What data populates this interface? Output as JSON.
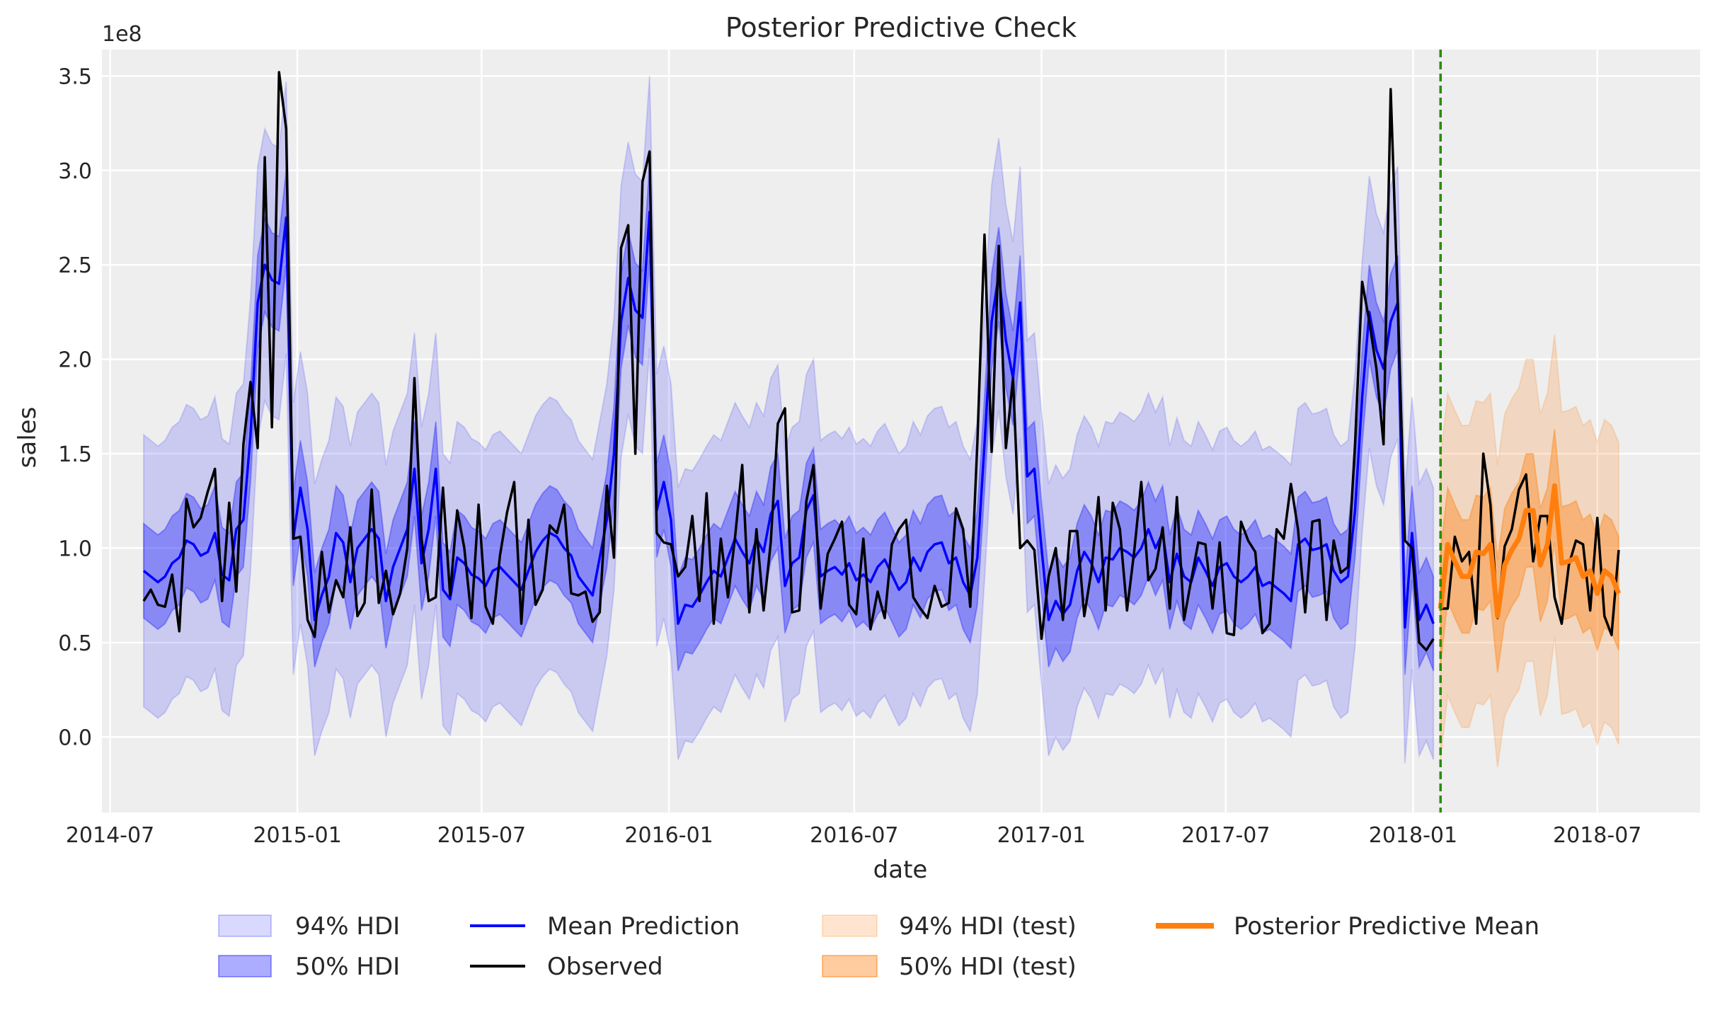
{
  "chart_data": {
    "type": "line",
    "title": "Posterior Predictive Check",
    "xlabel": "date",
    "ylabel": "sales",
    "y_scale_label": "1e8",
    "y_unit_multiplier": 100000000,
    "ylim": [
      -0.4,
      3.64
    ],
    "xlim": [
      "2014-06-23",
      "2018-10-10"
    ],
    "grid": true,
    "y_ticks": [
      0.0,
      0.5,
      1.0,
      1.5,
      2.0,
      2.5,
      3.0,
      3.5
    ],
    "y_tick_labels": [
      "0.0",
      "0.5",
      "1.0",
      "1.5",
      "2.0",
      "2.5",
      "3.0",
      "3.5"
    ],
    "x_ticks": [
      "2014-07-01",
      "2015-01-01",
      "2015-07-01",
      "2016-01-01",
      "2016-07-01",
      "2017-01-01",
      "2017-07-01",
      "2018-01-01",
      "2018-07-01"
    ],
    "x_tick_labels": [
      "2014-07",
      "2015-01",
      "2015-07",
      "2016-01",
      "2016-07",
      "2017-01",
      "2017-07",
      "2018-01",
      "2018-07"
    ],
    "frequency": "weekly",
    "train_start": "2014-08-03",
    "test_start": "2018-01-28",
    "split_line_date": "2018-01-28",
    "legend_placement": "bottom-center",
    "legend": [
      {
        "label": "94% HDI",
        "kind": "patch",
        "color": "#0000ff",
        "alpha": 0.15
      },
      {
        "label": "50% HDI",
        "kind": "patch",
        "color": "#0000ff",
        "alpha": 0.32
      },
      {
        "label": "Mean Prediction",
        "kind": "line",
        "color": "#0000ff"
      },
      {
        "label": "Observed",
        "kind": "line",
        "color": "#000000"
      },
      {
        "label": "94% HDI (test)",
        "kind": "patch",
        "color": "#ff7f0e",
        "alpha": 0.2
      },
      {
        "label": "50% HDI (test)",
        "kind": "patch",
        "color": "#ff7f0e",
        "alpha": 0.4
      },
      {
        "label": "Posterior Predictive Mean",
        "kind": "line",
        "color": "#ff7f0e"
      }
    ],
    "colors": {
      "train": "#0000ff",
      "observed": "#000000",
      "test": "#ff7f0e",
      "split": "#2a8c00",
      "background": "#eeeeee"
    },
    "train": {
      "observed": [
        0.72,
        0.78,
        0.7,
        0.69,
        0.86,
        0.56,
        1.26,
        1.11,
        1.16,
        1.3,
        1.42,
        0.72,
        1.24,
        0.77,
        1.55,
        1.88,
        1.53,
        3.07,
        1.64,
        3.52,
        3.22,
        1.05,
        1.06,
        0.62,
        0.53,
        0.98,
        0.66,
        0.83,
        0.74,
        1.11,
        0.64,
        0.71,
        1.31,
        0.71,
        0.88,
        0.65,
        0.76,
        1.0,
        1.9,
        1.05,
        0.72,
        0.74,
        1.32,
        0.75,
        1.2,
        1.0,
        0.63,
        1.23,
        0.69,
        0.6,
        0.96,
        1.19,
        1.35,
        0.6,
        1.15,
        0.7,
        0.78,
        1.12,
        1.08,
        1.23,
        0.76,
        0.75,
        0.77,
        0.61,
        0.66,
        1.33,
        0.95,
        2.59,
        2.71,
        1.5,
        2.94,
        3.1,
        1.08,
        1.03,
        1.02,
        0.85,
        0.9,
        1.17,
        0.72,
        1.29,
        0.6,
        1.05,
        0.74,
        1.06,
        1.44,
        0.66,
        1.1,
        0.67,
        1.03,
        1.66,
        1.74,
        0.66,
        0.67,
        1.25,
        1.44,
        0.68,
        0.97,
        1.05,
        1.14,
        0.7,
        0.65,
        1.05,
        0.57,
        0.77,
        0.63,
        1.02,
        1.1,
        1.15,
        0.74,
        0.68,
        0.63,
        0.8,
        0.69,
        0.71,
        1.21,
        1.1,
        0.69,
        1.56,
        2.66,
        1.51,
        2.6,
        1.53,
        1.9,
        1.0,
        1.04,
        0.99,
        0.52,
        0.85,
        1.0,
        0.62,
        1.09,
        1.09,
        0.64,
        0.88,
        1.27,
        0.67,
        1.24,
        1.1,
        0.67,
        0.98,
        1.35,
        0.83,
        0.89,
        1.11,
        0.68,
        1.27,
        0.62,
        0.83,
        1.03,
        1.02,
        0.68,
        1.03,
        0.55,
        0.54,
        1.14,
        1.04,
        0.98,
        0.55,
        0.6,
        1.1,
        1.05,
        1.34,
        1.1,
        0.66,
        1.14,
        1.15,
        0.62,
        1.04,
        0.87,
        0.9,
        1.55,
        2.41,
        2.2,
        1.95,
        1.55,
        3.43,
        2.3,
        1.04,
        1.0,
        0.5,
        0.46,
        0.52
      ],
      "mean_prediction": [
        0.88,
        0.85,
        0.82,
        0.85,
        0.92,
        0.95,
        1.04,
        1.02,
        0.96,
        0.98,
        1.08,
        0.86,
        0.83,
        1.1,
        1.15,
        1.6,
        2.3,
        2.5,
        2.42,
        2.4,
        2.75,
        1.05,
        1.32,
        1.1,
        0.62,
        0.75,
        0.85,
        1.08,
        1.03,
        0.82,
        1.0,
        1.05,
        1.1,
        1.05,
        0.72,
        0.9,
        1.0,
        1.1,
        1.42,
        0.92,
        1.1,
        1.42,
        0.78,
        0.73,
        0.95,
        0.92,
        0.86,
        0.84,
        0.8,
        0.88,
        0.9,
        0.86,
        0.82,
        0.78,
        0.88,
        0.98,
        1.04,
        1.08,
        1.06,
        1.0,
        0.96,
        0.85,
        0.8,
        0.75,
        0.95,
        1.15,
        1.5,
        2.2,
        2.43,
        2.26,
        2.22,
        2.78,
        1.2,
        1.35,
        1.15,
        0.6,
        0.7,
        0.69,
        0.75,
        0.82,
        0.88,
        0.85,
        0.95,
        1.05,
        0.98,
        0.92,
        1.05,
        0.98,
        1.18,
        1.25,
        0.8,
        0.92,
        0.95,
        1.2,
        1.28,
        0.85,
        0.88,
        0.9,
        0.86,
        0.92,
        0.83,
        0.86,
        0.82,
        0.9,
        0.94,
        0.86,
        0.78,
        0.82,
        0.95,
        0.88,
        0.98,
        1.02,
        1.03,
        0.92,
        0.95,
        0.82,
        0.75,
        0.95,
        1.55,
        2.2,
        2.45,
        2.1,
        1.9,
        2.3,
        1.38,
        1.42,
        1.0,
        0.62,
        0.72,
        0.65,
        0.7,
        0.88,
        0.98,
        0.92,
        0.82,
        0.95,
        0.94,
        1.0,
        0.98,
        0.95,
        1.0,
        1.1,
        1.0,
        1.08,
        0.82,
        0.97,
        0.85,
        0.82,
        0.95,
        0.88,
        0.8,
        0.9,
        0.92,
        0.85,
        0.82,
        0.85,
        0.9,
        0.8,
        0.82,
        0.79,
        0.76,
        0.72,
        1.02,
        1.05,
        0.99,
        1.0,
        1.02,
        0.88,
        0.82,
        0.85,
        1.2,
        1.8,
        2.25,
        2.05,
        1.95,
        2.2,
        2.3,
        0.58,
        1.08,
        0.62,
        0.7,
        0.6
      ],
      "hdi_94_halfwidth": 0.72,
      "hdi_50_halfwidth": 0.25
    },
    "test": {
      "observed": [
        0.68,
        0.68,
        1.06,
        0.93,
        0.98,
        0.6,
        1.5,
        1.23,
        0.63,
        1.01,
        1.1,
        1.31,
        1.39,
        0.93,
        1.17,
        1.17,
        0.74,
        0.6,
        0.91,
        1.04,
        1.02,
        0.67,
        1.16,
        0.64,
        0.54,
        0.99
      ],
      "posterior_predictive_mean": [
        0.68,
        1.02,
        0.93,
        0.85,
        0.85,
        0.98,
        0.97,
        1.02,
        0.64,
        0.91,
        0.99,
        1.05,
        1.2,
        1.2,
        0.91,
        1.02,
        1.33,
        0.92,
        0.93,
        0.95,
        0.85,
        0.88,
        0.76,
        0.88,
        0.85,
        0.76
      ],
      "hdi_94_halfwidth": 0.8,
      "hdi_50_halfwidth": 0.3
    }
  }
}
